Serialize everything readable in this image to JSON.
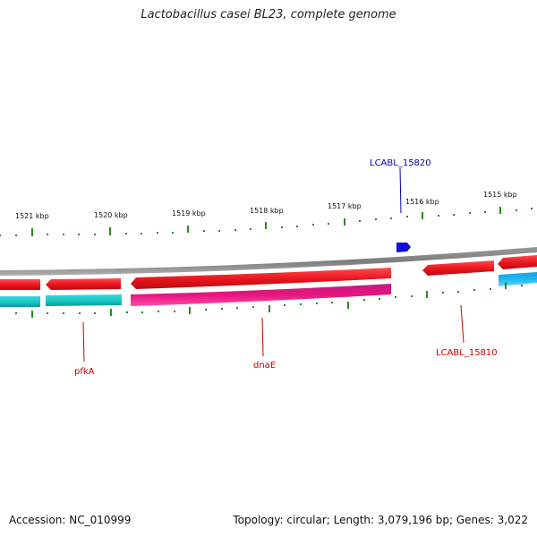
{
  "header": {
    "title": "Lactobacillus casei BL23, complete genome"
  },
  "footer": {
    "accession": "Accession: NC_010999",
    "summary": "Topology: circular; Length: 3,079,196 bp; Genes: 3,022"
  },
  "ruler": {
    "ticks": [
      "1515 kbp",
      "1516 kbp",
      "1517 kbp",
      "1518 kbp",
      "1519 kbp",
      "1520 kbp",
      "1521 kbp"
    ]
  },
  "gene_labels": {
    "lcabl_15820": "LCABL_15820",
    "lcabl_15810": "LCABL_15810",
    "pfka": "pfkA",
    "dnae": "dnaE"
  },
  "colors": {
    "cds_red": "#e8141c",
    "cds_cyan": "#19c6c6",
    "cds_magenta": "#e6157e",
    "cds_light_blue": "#1cb8f0",
    "cds_blue": "#1010d8",
    "ruler_green": "#2a8a1a",
    "backbone_gray": "#7d7d7d",
    "label_red": "#cc0000",
    "label_blue": "#0000aa"
  }
}
